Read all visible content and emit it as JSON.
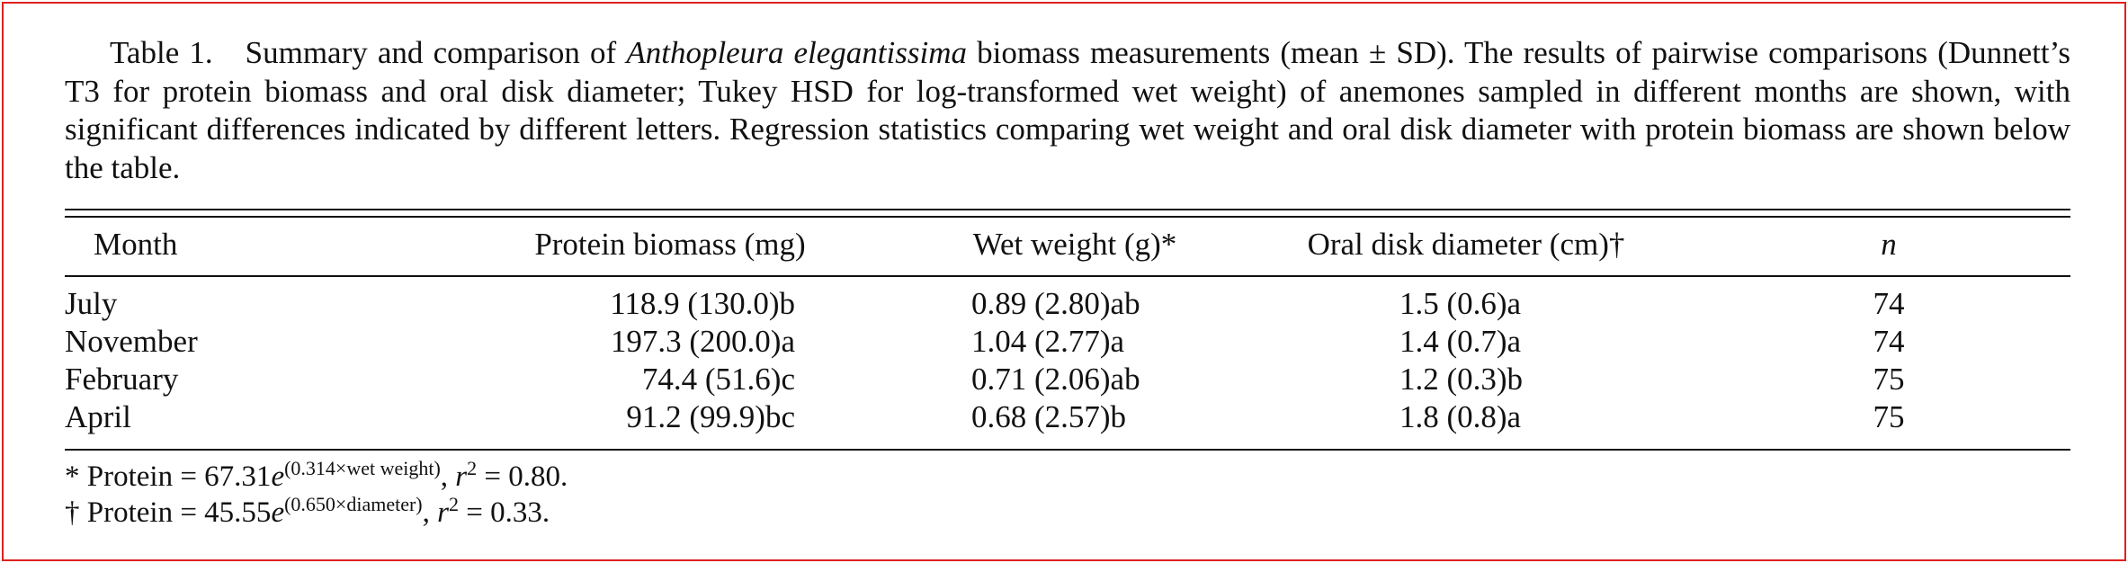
{
  "caption": {
    "label": "Table 1.",
    "text_before": "Summary and comparison of ",
    "species": "Anthopleura elegantissima",
    "text_after": " biomass measurements (mean ± SD). The results of pairwise comparisons (Dunnett’s T3 for protein biomass and oral disk diameter; Tukey HSD for log-transformed wet weight) of anemones sampled in different months are shown, with significant differences indicated by different letters. Regression statistics comparing wet weight and oral disk diameter with protein biomass are shown below the table."
  },
  "table": {
    "headers": {
      "month": "Month",
      "protein": "Protein biomass (mg)",
      "wet": "Wet weight (g)*",
      "oral": "Oral disk diameter (cm)†",
      "n": "n"
    },
    "rows": [
      {
        "month": "July",
        "protein": "118.9 (130.0)b",
        "wet": "0.89 (2.80)ab",
        "oral": "1.5 (0.6)a",
        "n": "74"
      },
      {
        "month": "November",
        "protein": "197.3 (200.0)a",
        "wet": "1.04 (2.77)a",
        "oral": "1.4 (0.7)a",
        "n": "74"
      },
      {
        "month": "February",
        "protein": "74.4 (51.6)c",
        "wet": "0.71 (2.06)ab",
        "oral": "1.2 (0.3)b",
        "n": "75"
      },
      {
        "month": "April",
        "protein": "91.2 (99.9)bc",
        "wet": "0.68 (2.57)b",
        "oral": "1.8 (0.8)a",
        "n": "75"
      }
    ]
  },
  "footnotes": [
    {
      "prefix": "* Protein = 67.31",
      "base": "e",
      "exponent": "(0.314×wet weight)",
      "r": "r",
      "r_sup": "2",
      "suffix": " = 0.80."
    },
    {
      "prefix": "† Protein = 45.55",
      "base": "e",
      "exponent": "(0.650×diameter)",
      "r": "r",
      "r_sup": "2",
      "suffix": " = 0.33."
    }
  ]
}
